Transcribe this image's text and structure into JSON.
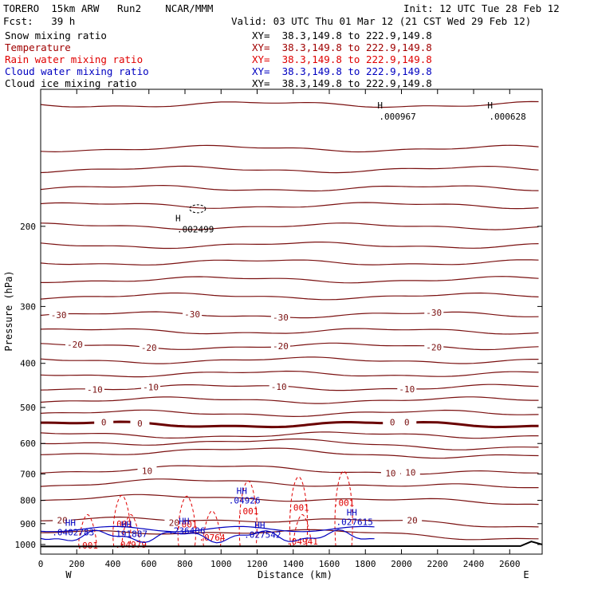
{
  "header": {
    "model": "TORERO  15km ARW   Run2    NCAR/MMM",
    "init": "Init: 12 UTC Tue 28 Feb 12",
    "fcst": "Fcst:   39 h",
    "valid": "Valid: 03 UTC Thu 01 Mar 12 (21 CST Wed 29 Feb 12)"
  },
  "fields": [
    {
      "name": "Snow mixing ratio",
      "xy": "XY=  38.3,149.8 to 222.9,149.8",
      "color": "#000000"
    },
    {
      "name": "Temperature",
      "xy": "XY=  38.3,149.8 to 222.9,149.8",
      "color": "#a00000"
    },
    {
      "name": "Rain water mixing ratio",
      "xy": "XY=  38.3,149.8 to 222.9,149.8",
      "color": "#e00000"
    },
    {
      "name": "Cloud water mixing ratio",
      "xy": "XY=  38.3,149.8 to 222.9,149.8",
      "color": "#0000c0"
    },
    {
      "name": "Cloud ice mixing ratio",
      "xy": "XY=  38.3,149.8 to 222.9,149.8",
      "color": "#000000"
    }
  ],
  "colors": {
    "temperature": "#7a1010",
    "zero_isotherm": "#6a0000",
    "rain": "#e00000",
    "cloud_water": "#0000c0",
    "snow": "#000000",
    "terrain": "#000000"
  },
  "chart_data": {
    "type": "cross-section",
    "xlabel": "Distance (km)",
    "ylabel": "Pressure (hPa)",
    "xlim": [
      0,
      2780
    ],
    "ylim": [
      1050,
      100
    ],
    "y_scale": "log-pressure",
    "x_ticks": [
      0,
      200,
      400,
      600,
      800,
      1000,
      1200,
      1400,
      1600,
      1800,
      2000,
      2200,
      2400,
      2600
    ],
    "y_ticks": [
      200,
      300,
      400,
      500,
      600,
      700,
      800,
      900,
      1000
    ],
    "y_tick_labels": [
      "200",
      "300",
      "400",
      "500",
      "600",
      "700",
      "800",
      "900",
      "1000"
    ],
    "left_endpoint_label": "W",
    "right_endpoint_label": "E",
    "temperature_contours": [
      {
        "p": 108,
        "label": null
      },
      {
        "p": 135,
        "label": null
      },
      {
        "p": 150,
        "label": null
      },
      {
        "p": 165,
        "label": null
      },
      {
        "p": 180,
        "label": null
      },
      {
        "p": 200,
        "label": null
      },
      {
        "p": 220,
        "label": null
      },
      {
        "p": 240,
        "label": null
      },
      {
        "p": 262,
        "label": null
      },
      {
        "p": 285,
        "label": null
      },
      {
        "p": 313,
        "label": "-30",
        "label_x": [
          100,
          840,
          1330,
          2180
        ]
      },
      {
        "p": 340,
        "label": null
      },
      {
        "p": 367,
        "label": "-20",
        "label_x": [
          190,
          600,
          1330,
          2180
        ]
      },
      {
        "p": 394,
        "label": null
      },
      {
        "p": 422,
        "label": null
      },
      {
        "p": 452,
        "label": "-10",
        "label_x": [
          300,
          610,
          1320,
          2030
        ]
      },
      {
        "p": 482,
        "label": null
      },
      {
        "p": 515,
        "label": null
      },
      {
        "p": 545,
        "label": "0",
        "label_x": [
          350,
          550,
          1950,
          2030
        ],
        "bold": true
      },
      {
        "p": 575,
        "label": null
      },
      {
        "p": 603,
        "label": null
      },
      {
        "p": 632,
        "label": null
      },
      {
        "p": 690,
        "label": "10",
        "label_x": [
          590,
          1940,
          2050
        ]
      },
      {
        "p": 740,
        "label": null
      },
      {
        "p": 800,
        "label": null
      },
      {
        "p": 893,
        "label": "20",
        "label_x": [
          120,
          740,
          2060
        ]
      },
      {
        "p": 950,
        "label": null
      }
    ],
    "snow_max": [
      {
        "x": 800,
        "p": 198,
        "value": "H",
        "label": ".002499"
      },
      {
        "x": 1920,
        "p": 112,
        "value": "H",
        "label": ".000967"
      },
      {
        "x": 2530,
        "p": 112,
        "value": "H",
        "label": ".000628"
      }
    ],
    "cloud_water_max": [
      {
        "x": 180,
        "p": 940,
        "label": ".0402783"
      },
      {
        "x": 490,
        "p": 948,
        "label": ".191887"
      },
      {
        "x": 810,
        "p": 933,
        "label": ".236406"
      },
      {
        "x": 1130,
        "p": 800,
        "label": ".04926"
      },
      {
        "x": 1230,
        "p": 951,
        "label": ".027542"
      },
      {
        "x": 1740,
        "p": 892,
        "label": ".027615"
      }
    ],
    "rain_max": [
      {
        "x": 450,
        "p": 900,
        "label": ".001"
      },
      {
        "x": 810,
        "p": 903,
        "label": ".001"
      },
      {
        "x": 950,
        "p": 964,
        "label": ".0764"
      },
      {
        "x": 1150,
        "p": 845,
        "label": ".001"
      },
      {
        "x": 1430,
        "p": 830,
        "label": ".001"
      },
      {
        "x": 1680,
        "p": 810,
        "label": ".001"
      },
      {
        "x": 1450,
        "p": 985,
        "label": ".04941"
      },
      {
        "x": 500,
        "p": 1000,
        "label": ".04979"
      },
      {
        "x": 260,
        "p": 1005,
        "label": ".001"
      }
    ],
    "terrain": [
      [
        0,
        1010
      ],
      [
        2660,
        1008
      ],
      [
        2720,
        985
      ],
      [
        2780,
        1000
      ]
    ]
  }
}
